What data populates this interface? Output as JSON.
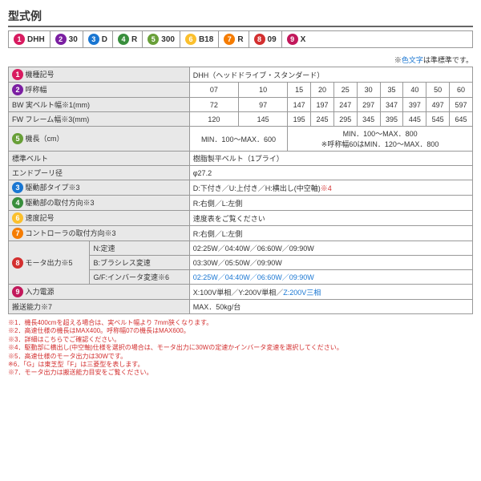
{
  "title": "型式例",
  "model": [
    {
      "n": 1,
      "c": "c1",
      "v": "DHH"
    },
    {
      "n": 2,
      "c": "c2",
      "v": "30"
    },
    {
      "n": 3,
      "c": "c3",
      "v": "D"
    },
    {
      "n": 4,
      "c": "c4",
      "v": "R"
    },
    {
      "n": 5,
      "c": "c5",
      "v": "300"
    },
    {
      "n": 6,
      "c": "c6",
      "v": "B18"
    },
    {
      "n": 7,
      "c": "c7",
      "v": "R"
    },
    {
      "n": 8,
      "c": "c8",
      "v": "09"
    },
    {
      "n": 9,
      "c": "c9",
      "v": "X"
    }
  ],
  "note_right_pre": "※",
  "note_right_blue": "色文字",
  "note_right_post": "は準標準です。",
  "rows": {
    "r1l": "機種記号",
    "r1v": "DHH（ヘッドドライブ・スタンダード）",
    "r2l": "呼称幅",
    "r2": [
      "07",
      "10",
      "15",
      "20",
      "25",
      "30",
      "35",
      "40",
      "50",
      "60"
    ],
    "r3l": "BW 実ベルト幅※1(mm)",
    "r3": [
      "72",
      "97",
      "147",
      "197",
      "247",
      "297",
      "347",
      "397",
      "497",
      "597"
    ],
    "r4l": "FW フレーム幅※3(mm)",
    "r4": [
      "120",
      "145",
      "195",
      "245",
      "295",
      "345",
      "395",
      "445",
      "545",
      "645"
    ],
    "r5l": "機長（cm）",
    "r5a": "MIN．100～MAX．600",
    "r5b": "MIN．100～MAX．800\n※呼称幅60はMIN．120～MAX．800",
    "r6l": "標準ベルト",
    "r6v": "樹脂製平ベルト（1プライ）",
    "r7l": "エンドプーリ径",
    "r7v": "φ27.2",
    "r8l": "駆動部タイプ※3",
    "r8v": "D:下付き／U:上付き／H:横出し(中空軸)※4",
    "r9l": "駆動部の取付方向※3",
    "r9v": "R:右側／L:左側",
    "r10l": "速度記号",
    "r10v": "速度表をご覧ください",
    "r11l": "コントローラの取付方向※3",
    "r11v": "R:右側／L:左側",
    "r12l": "モータ出力※5",
    "r12a": "N:定速",
    "r12av": "02:25W／04:40W／06:60W／09:90W",
    "r12b": "B:ブラシレス変速",
    "r12bv": "03:30W／05:50W／09:90W",
    "r12c": "G/F:インバータ変速※6",
    "r12cv": "02:25W／04:40W／06:60W／09:90W",
    "r13l": "入力電源",
    "r13v": "X:100V単相／Y:200V単相／",
    "r13blue": "Z:200V三相",
    "r14l": "搬送能力※7",
    "r14v": "MAX．50kg/台"
  },
  "fn": [
    "※1．機長400cmを超える場合は、実ベルト幅より 7mm狭くなります。",
    "※2．高速仕様の機長はMAX400。呼称幅07の機長はMAX600。",
    "※3．詳細はこちらでご確認ください。",
    "※4．駆動部に横出し(中空軸)仕様を選択の場合は、モータ出力に30Wの定速かインバータ変速を選択してください。",
    "※5．高速仕様のモータ出力は30Wです。",
    "※6．「G」は東芝型「F」は三菱型を表します。",
    "※7．モータ出力は搬送能力目安をご覧ください。"
  ]
}
